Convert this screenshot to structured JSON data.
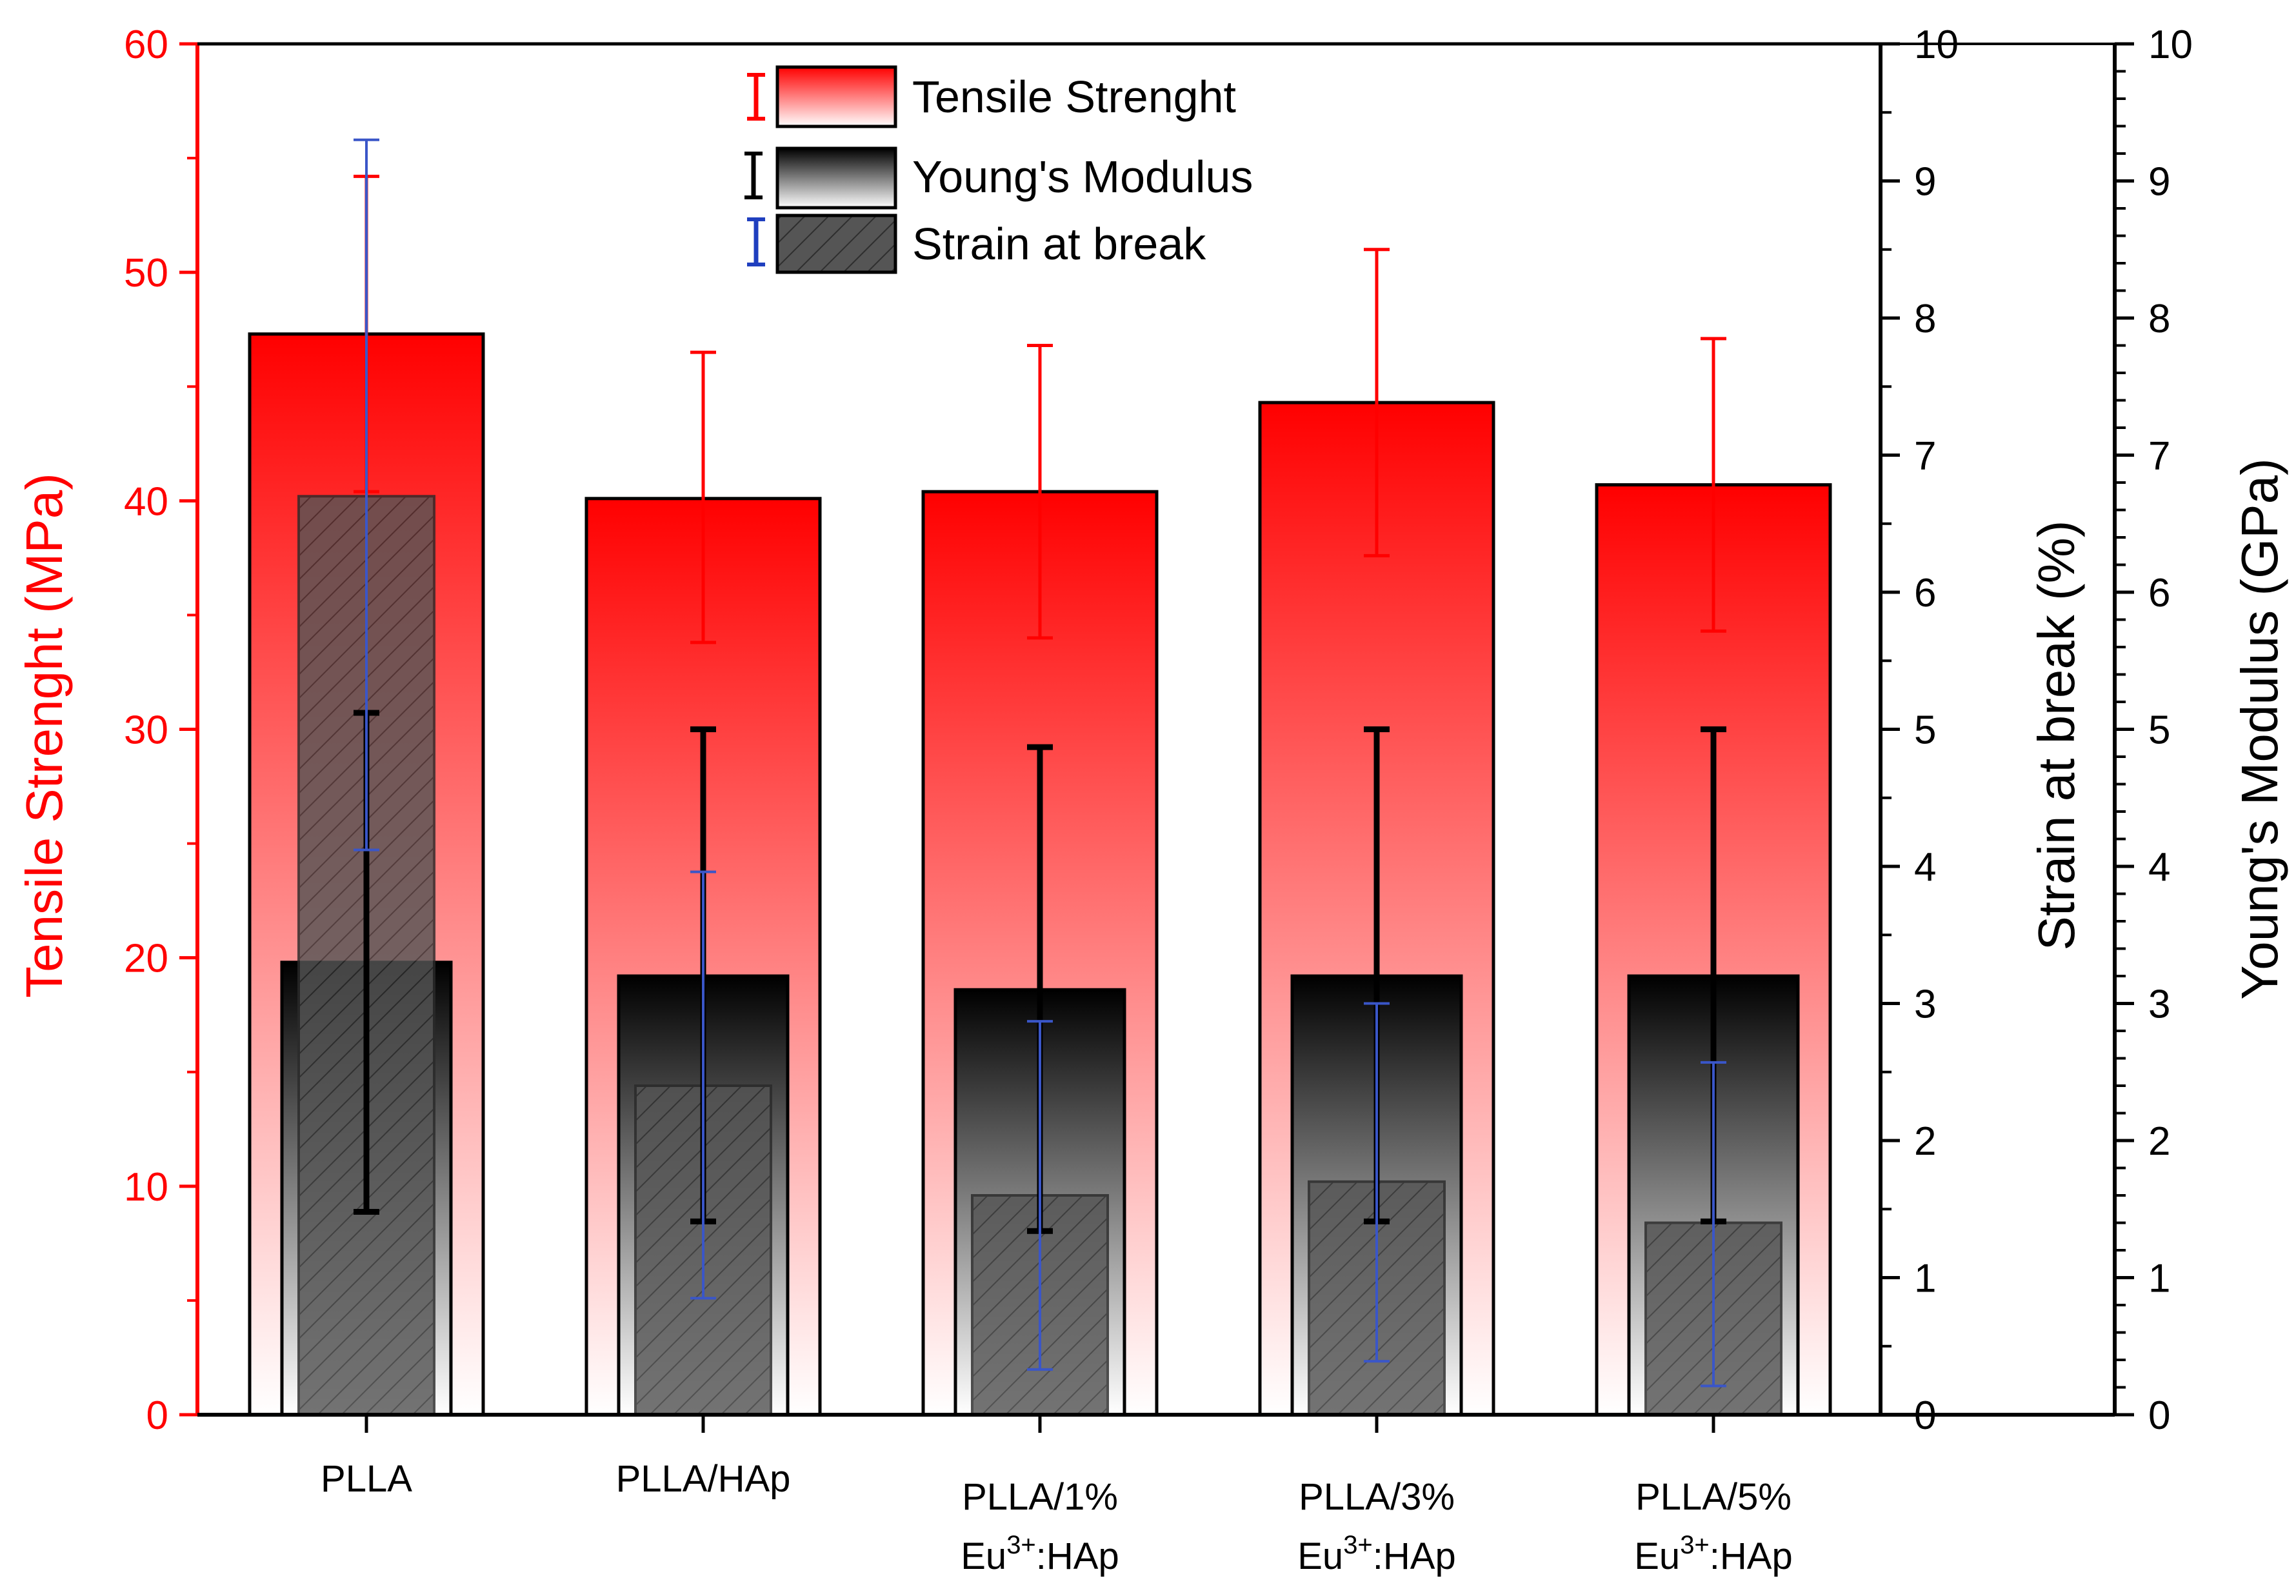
{
  "chart_data": {
    "type": "bar",
    "categories": [
      {
        "line1": "PLLA",
        "line2_base": "",
        "line2_sup": "",
        "line2_tail": ""
      },
      {
        "line1": "PLLA/HAp",
        "line2_base": "",
        "line2_sup": "",
        "line2_tail": ""
      },
      {
        "line1": "PLLA/1%",
        "line2_base": "Eu",
        "line2_sup": "3+",
        "line2_tail": ":HAp"
      },
      {
        "line1": "PLLA/3%",
        "line2_base": "Eu",
        "line2_sup": "3+",
        "line2_tail": ":HAp"
      },
      {
        "line1": "PLLA/5%",
        "line2_base": "Eu",
        "line2_sup": "3+",
        "line2_tail": ":HAp"
      }
    ],
    "series": [
      {
        "name": "Tensile Strenght",
        "axis": "left",
        "values": [
          47.3,
          40.1,
          40.4,
          44.3,
          40.7
        ],
        "error_low": [
          40.4,
          33.8,
          34.0,
          37.6,
          34.3
        ],
        "error_high": [
          54.2,
          46.5,
          46.8,
          51.0,
          47.1
        ],
        "color": "#ff0000",
        "fill": "red-gradient"
      },
      {
        "name": "Young's Modulus",
        "axis": "right-outer",
        "values": [
          3.3,
          3.2,
          3.1,
          3.2,
          3.2
        ],
        "error_low": [
          1.48,
          1.41,
          1.34,
          1.41,
          1.41
        ],
        "error_high": [
          5.12,
          5.0,
          4.87,
          5.0,
          5.0
        ],
        "color": "#000000",
        "fill": "black-gradient"
      },
      {
        "name": "Strain at break",
        "axis": "right-inner",
        "values": [
          6.7,
          2.4,
          1.6,
          1.7,
          1.4
        ],
        "error_low": [
          4.12,
          0.85,
          0.33,
          0.39,
          0.21
        ],
        "error_high": [
          9.3,
          3.96,
          2.87,
          3.0,
          2.57
        ],
        "color": "#1f3fbf",
        "fill": "hatched-gray"
      }
    ],
    "axes": {
      "left": {
        "label": "Tensile Strenght (MPa)",
        "ylim": [
          0,
          60
        ],
        "ticks": [
          0,
          10,
          20,
          30,
          40,
          50,
          60
        ],
        "color": "#ff0000"
      },
      "right_inner": {
        "label": "Strain at break (%)",
        "ylim": [
          0,
          10
        ],
        "ticks": [
          0,
          1,
          2,
          3,
          4,
          5,
          6,
          7,
          8,
          9,
          10
        ],
        "color": "#000000"
      },
      "right_outer": {
        "label": "Young's Modulus (GPa)",
        "ylim": [
          0,
          10
        ],
        "ticks": [
          0,
          1,
          2,
          3,
          4,
          5,
          6,
          7,
          8,
          9,
          10
        ],
        "color": "#000000"
      }
    },
    "legend": {
      "placement": "top-center",
      "entries": [
        "Tensile Strenght",
        "Young's Modulus",
        "Strain at break"
      ]
    },
    "grid": false
  }
}
